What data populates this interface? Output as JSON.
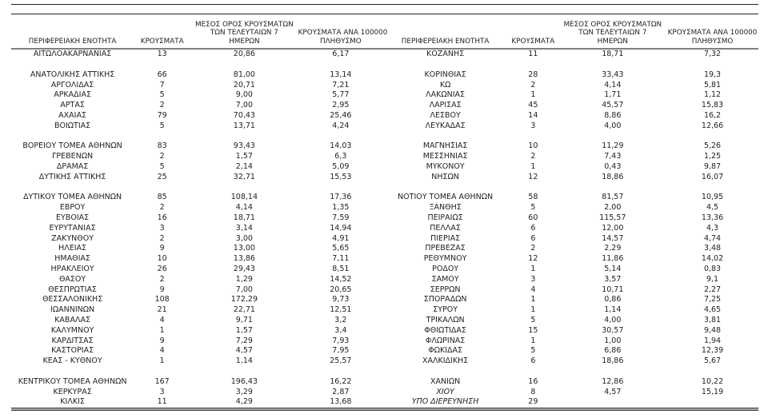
{
  "colors": {
    "text": "#1f1f1f",
    "header_rule": "#7f7f7f",
    "top_rule": "#222222",
    "bottom_rule": "#3c3c3c"
  },
  "table": {
    "headers": {
      "region": "ΠΕΡΙΦΕΡΕΙΑΚΗ ΕΝΟΤΗΤΑ",
      "cases": "ΚΡΟΥΣΜΑΤΑ",
      "avg7_line1": "ΜΕΣΟΣ ΟΡΟΣ ΚΡΟΥΣΜΑΤΩΝ",
      "avg7_line2": "ΤΩΝ ΤΕΛΕΥΤΑΙΩΝ 7",
      "avg7_line3": "ΗΜΕΡΩΝ",
      "per100k_line1": "ΚΡΟΥΣΜΑΤΑ ΑΝΑ 100000",
      "per100k_line2": "ΠΛΗΘΥΣΜΟ"
    },
    "left_rows": [
      {
        "region": "ΑΙΤΩΛΟΑΚΑΡΝΑΝΙΑΣ",
        "cases": "13",
        "avg7": "20,86",
        "per100k": "6,17"
      },
      {
        "region": "",
        "cases": "",
        "avg7": "",
        "per100k": ""
      },
      {
        "region": "ΑΝΑΤΟΛΙΚΗΣ ΑΤΤΙΚΗΣ",
        "cases": "66",
        "avg7": "81,00",
        "per100k": "13,14"
      },
      {
        "region": "ΑΡΓΟΛΙΔΑΣ",
        "cases": "7",
        "avg7": "20,71",
        "per100k": "7,21"
      },
      {
        "region": "ΑΡΚΑΔΙΑΣ",
        "cases": "5",
        "avg7": "9,00",
        "per100k": "5,77"
      },
      {
        "region": "ΑΡΤΑΣ",
        "cases": "2",
        "avg7": "7,00",
        "per100k": "2,95"
      },
      {
        "region": "ΑΧΑΪΑΣ",
        "cases": "79",
        "avg7": "70,43",
        "per100k": "25,46"
      },
      {
        "region": "ΒΟΙΩΤΙΑΣ",
        "cases": "5",
        "avg7": "13,71",
        "per100k": "4,24"
      },
      {
        "region": "",
        "cases": "",
        "avg7": "",
        "per100k": ""
      },
      {
        "region": "ΒΟΡΕΙΟΥ ΤΟΜΕΑ ΑΘΗΝΩΝ",
        "cases": "83",
        "avg7": "93,43",
        "per100k": "14,03"
      },
      {
        "region": "ΓΡΕΒΕΝΩΝ",
        "cases": "2",
        "avg7": "1,57",
        "per100k": "6,3"
      },
      {
        "region": "ΔΡΑΜΑΣ",
        "cases": "5",
        "avg7": "2,14",
        "per100k": "5,09"
      },
      {
        "region": "ΔΥΤΙΚΗΣ ΑΤΤΙΚΗΣ",
        "cases": "25",
        "avg7": "32,71",
        "per100k": "15,53"
      },
      {
        "region": "",
        "cases": "",
        "avg7": "",
        "per100k": ""
      },
      {
        "region": "ΔΥΤΙΚΟΥ ΤΟΜΕΑ ΑΘΗΝΩΝ",
        "cases": "85",
        "avg7": "108,14",
        "per100k": "17,36"
      },
      {
        "region": "ΕΒΡΟΥ",
        "cases": "2",
        "avg7": "4,14",
        "per100k": "1,35"
      },
      {
        "region": "ΕΥΒΟΙΑΣ",
        "cases": "16",
        "avg7": "18,71",
        "per100k": "7,59"
      },
      {
        "region": "ΕΥΡΥΤΑΝΙΑΣ",
        "cases": "3",
        "avg7": "3,14",
        "per100k": "14,94"
      },
      {
        "region": "ΖΑΚΥΝΘΟΥ",
        "cases": "2",
        "avg7": "3,00",
        "per100k": "4,91"
      },
      {
        "region": "ΗΛΕΙΑΣ",
        "cases": "9",
        "avg7": "13,00",
        "per100k": "5,65"
      },
      {
        "region": "ΗΜΑΘΙΑΣ",
        "cases": "10",
        "avg7": "13,86",
        "per100k": "7,11"
      },
      {
        "region": "ΗΡΑΚΛΕΙΟΥ",
        "cases": "26",
        "avg7": "29,43",
        "per100k": "8,51"
      },
      {
        "region": "ΘΑΣΟΥ",
        "cases": "2",
        "avg7": "1,29",
        "per100k": "14,52"
      },
      {
        "region": "ΘΕΣΠΡΩΤΙΑΣ",
        "cases": "9",
        "avg7": "7,00",
        "per100k": "20,65"
      },
      {
        "region": "ΘΕΣΣΑΛΟΝΙΚΗΣ",
        "cases": "108",
        "avg7": "172,29",
        "per100k": "9,73"
      },
      {
        "region": "ΙΩΑΝΝΙΝΩΝ",
        "cases": "21",
        "avg7": "22,71",
        "per100k": "12,51"
      },
      {
        "region": "ΚΑΒΑΛΑΣ",
        "cases": "4",
        "avg7": "9,71",
        "per100k": "3,2"
      },
      {
        "region": "ΚΑΛΥΜΝΟΥ",
        "cases": "1",
        "avg7": "1,57",
        "per100k": "3,4"
      },
      {
        "region": "ΚΑΡΔΙΤΣΑΣ",
        "cases": "9",
        "avg7": "7,29",
        "per100k": "7,93"
      },
      {
        "region": "ΚΑΣΤΟΡΙΑΣ",
        "cases": "4",
        "avg7": "4,57",
        "per100k": "7,95"
      },
      {
        "region": "ΚΕΑΣ - ΚΥΘΝΟΥ",
        "cases": "1",
        "avg7": "1,14",
        "per100k": "25,57"
      },
      {
        "region": "",
        "cases": "",
        "avg7": "",
        "per100k": ""
      },
      {
        "region": "ΚΕΝΤΡΙΚΟΥ ΤΟΜΕΑ ΑΘΗΝΩΝ",
        "cases": "167",
        "avg7": "196,43",
        "per100k": "16,22"
      },
      {
        "region": "ΚΕΡΚΥΡΑΣ",
        "cases": "3",
        "avg7": "3,29",
        "per100k": "2,87"
      },
      {
        "region": "ΚΙΛΚΙΣ",
        "cases": "11",
        "avg7": "4,29",
        "per100k": "13,68"
      }
    ],
    "right_rows": [
      {
        "region": "ΚΟΖΑΝΗΣ",
        "cases": "11",
        "avg7": "18,71",
        "per100k": "7,32"
      },
      {
        "region": "",
        "cases": "",
        "avg7": "",
        "per100k": ""
      },
      {
        "region": "ΚΟΡΙΝΘΙΑΣ",
        "cases": "28",
        "avg7": "33,43",
        "per100k": "19,3"
      },
      {
        "region": "ΚΩ",
        "cases": "2",
        "avg7": "4,14",
        "per100k": "5,81"
      },
      {
        "region": "ΛΑΚΩΝΙΑΣ",
        "cases": "1",
        "avg7": "1,71",
        "per100k": "1,12"
      },
      {
        "region": "ΛΑΡΙΣΑΣ",
        "cases": "45",
        "avg7": "45,57",
        "per100k": "15,83"
      },
      {
        "region": "ΛΕΣΒΟΥ",
        "cases": "14",
        "avg7": "8,86",
        "per100k": "16,2"
      },
      {
        "region": "ΛΕΥΚΑΔΑΣ",
        "cases": "3",
        "avg7": "4,00",
        "per100k": "12,66"
      },
      {
        "region": "",
        "cases": "",
        "avg7": "",
        "per100k": ""
      },
      {
        "region": "ΜΑΓΝΗΣΙΑΣ",
        "cases": "10",
        "avg7": "11,29",
        "per100k": "5,26"
      },
      {
        "region": "ΜΕΣΣΗΝΙΑΣ",
        "cases": "2",
        "avg7": "7,43",
        "per100k": "1,25"
      },
      {
        "region": "ΜΥΚΟΝΟΥ",
        "cases": "1",
        "avg7": "0,43",
        "per100k": "9,87"
      },
      {
        "region": "ΝΗΣΩΝ",
        "cases": "12",
        "avg7": "18,86",
        "per100k": "16,07"
      },
      {
        "region": "",
        "cases": "",
        "avg7": "",
        "per100k": ""
      },
      {
        "region": "ΝΟΤΙΟΥ ΤΟΜΕΑ ΑΘΗΝΩΝ",
        "cases": "58",
        "avg7": "81,57",
        "per100k": "10,95"
      },
      {
        "region": "ΞΑΝΘΗΣ",
        "cases": "5",
        "avg7": "2,00",
        "per100k": "4,5"
      },
      {
        "region": "ΠΕΙΡΑΙΩΣ",
        "cases": "60",
        "avg7": "115,57",
        "per100k": "13,36"
      },
      {
        "region": "ΠΕΛΛΑΣ",
        "cases": "6",
        "avg7": "12,00",
        "per100k": "4,3"
      },
      {
        "region": "ΠΙΕΡΙΑΣ",
        "cases": "6",
        "avg7": "14,57",
        "per100k": "4,74"
      },
      {
        "region": "ΠΡΕΒΕΖΑΣ",
        "cases": "2",
        "avg7": "2,29",
        "per100k": "3,48"
      },
      {
        "region": "ΡΕΘΥΜΝΟΥ",
        "cases": "12",
        "avg7": "11,86",
        "per100k": "14,02"
      },
      {
        "region": "ΡΟΔΟΥ",
        "cases": "1",
        "avg7": "5,14",
        "per100k": "0,83"
      },
      {
        "region": "ΣΑΜΟΥ",
        "cases": "3",
        "avg7": "3,57",
        "per100k": "9,1"
      },
      {
        "region": "ΣΕΡΡΩΝ",
        "cases": "4",
        "avg7": "10,71",
        "per100k": "2,27"
      },
      {
        "region": "ΣΠΟΡΑΔΩΝ",
        "cases": "1",
        "avg7": "0,86",
        "per100k": "7,25"
      },
      {
        "region": "ΣΥΡΟΥ",
        "cases": "1",
        "avg7": "1,14",
        "per100k": "4,65"
      },
      {
        "region": "ΤΡΙΚΑΛΩΝ",
        "cases": "5",
        "avg7": "4,00",
        "per100k": "3,81"
      },
      {
        "region": "ΦΘΙΩΤΙΔΑΣ",
        "cases": "15",
        "avg7": "30,57",
        "per100k": "9,48"
      },
      {
        "region": "ΦΛΩΡΙΝΑΣ",
        "cases": "1",
        "avg7": "1,00",
        "per100k": "1,94"
      },
      {
        "region": "ΦΩΚΙΔΑΣ",
        "cases": "5",
        "avg7": "6,86",
        "per100k": "12,39"
      },
      {
        "region": "ΧΑΛΚΙΔΙΚΗΣ",
        "cases": "6",
        "avg7": "18,86",
        "per100k": "5,67"
      },
      {
        "region": "",
        "cases": "",
        "avg7": "",
        "per100k": ""
      },
      {
        "region": "ΧΑΝΙΩΝ",
        "cases": "16",
        "avg7": "12,86",
        "per100k": "10,22"
      },
      {
        "region": "ΧΙΟΥ",
        "cases": "8",
        "avg7": "4,57",
        "per100k": "15,19",
        "italic": true
      },
      {
        "region": "ΥΠΟ ΔΙΕΡΕΥΝΗΣΗ",
        "cases": "29",
        "avg7": "",
        "per100k": "",
        "italic": true
      }
    ]
  }
}
